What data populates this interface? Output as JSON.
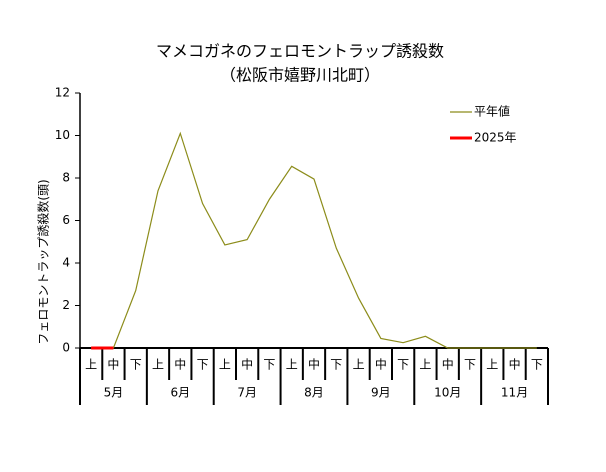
{
  "chart_data": {
    "type": "line",
    "title": [
      "マメコガネのフェロモントラップ誘殺数",
      "（松阪市嬉野川北町）"
    ],
    "ylabel": "フェロモントラップ誘殺数(頭)",
    "categories": [
      "上",
      "中",
      "下",
      "上",
      "中",
      "下",
      "上",
      "中",
      "下",
      "上",
      "中",
      "下",
      "上",
      "中",
      "下",
      "上",
      "中",
      "下",
      "上",
      "中",
      "下"
    ],
    "months": [
      "5月",
      "6月",
      "7月",
      "8月",
      "9月",
      "10月",
      "11月"
    ],
    "series": [
      {
        "name": "平年値",
        "color": "#8c8c1a",
        "values": [
          0,
          0,
          2.7,
          7.4,
          10.1,
          6.8,
          4.85,
          5.1,
          7.0,
          8.55,
          7.95,
          4.7,
          2.35,
          0.45,
          0.25,
          0.55,
          0,
          0,
          0,
          0,
          0
        ]
      },
      {
        "name": "2025年",
        "color": "#ff0000",
        "values": [
          0,
          0,
          null,
          null,
          null,
          null,
          null,
          null,
          null,
          null,
          null,
          null,
          null,
          null,
          null,
          null,
          null,
          null,
          null,
          null,
          null
        ]
      }
    ],
    "ylim": [
      0,
      12
    ],
    "yticks": [
      0,
      2,
      4,
      6,
      8,
      10,
      12
    ],
    "grid": false,
    "legend": "top-right"
  }
}
